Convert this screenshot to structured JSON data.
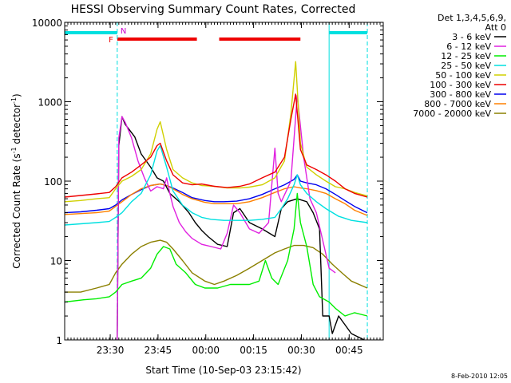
{
  "chart_data": {
    "type": "line",
    "title": "HESSI Observing Summary Count Rates, Corrected",
    "xlabel": "Start Time (10-Sep-03 23:15:42)",
    "ylabel_pre": "Corrected Count Rate (s",
    "ylabel_sup": "-1",
    "ylabel_post": " detector",
    "ylabel_end": ")",
    "y_scale": "log",
    "ylim": [
      1,
      10000
    ],
    "xlim_minutes": [
      0,
      100
    ],
    "x_ticks": [
      {
        "label": "23:30",
        "minute": 14.3
      },
      {
        "label": "23:45",
        "minute": 29.3
      },
      {
        "label": "00:00",
        "minute": 44.3
      },
      {
        "label": "00:15",
        "minute": 59.3
      },
      {
        "label": "00:30",
        "minute": 74.3
      },
      {
        "label": "00:45",
        "minute": 89.3
      }
    ],
    "y_ticks": [
      {
        "label": "1",
        "value": 1
      },
      {
        "label": "10",
        "value": 10
      },
      {
        "label": "100",
        "value": 100
      },
      {
        "label": "1000",
        "value": 1000
      },
      {
        "label": "10000",
        "value": 10000
      }
    ],
    "legend_header": [
      "Det 1,3,4,5,6,9,",
      "Att 0"
    ],
    "legend_placement": "right",
    "series": [
      {
        "name": "3 - 6 keV",
        "color": "#000000",
        "points": [
          [
            16.5,
            1
          ],
          [
            17,
            280
          ],
          [
            18,
            650
          ],
          [
            19,
            520
          ],
          [
            22,
            360
          ],
          [
            24,
            220
          ],
          [
            27,
            150
          ],
          [
            29,
            110
          ],
          [
            31,
            100
          ],
          [
            33,
            70
          ],
          [
            36,
            55
          ],
          [
            39,
            40
          ],
          [
            41,
            30
          ],
          [
            43,
            24
          ],
          [
            45,
            20
          ],
          [
            48,
            16
          ],
          [
            51,
            15
          ],
          [
            53,
            40
          ],
          [
            55,
            45
          ],
          [
            58,
            30
          ],
          [
            62,
            25
          ],
          [
            66,
            20
          ],
          [
            68,
            45
          ],
          [
            70,
            55
          ],
          [
            73,
            60
          ],
          [
            76,
            55
          ],
          [
            78,
            40
          ],
          [
            80,
            25
          ],
          [
            81,
            2
          ],
          [
            83,
            2
          ],
          [
            84,
            1.2
          ],
          [
            86,
            2
          ],
          [
            90,
            1.2
          ],
          [
            94,
            1
          ]
        ]
      },
      {
        "name": "6 - 12 keV",
        "color": "#e020e0",
        "points": [
          [
            16.5,
            1
          ],
          [
            17,
            350
          ],
          [
            18,
            650
          ],
          [
            19,
            550
          ],
          [
            21,
            350
          ],
          [
            23,
            180
          ],
          [
            25,
            110
          ],
          [
            27,
            75
          ],
          [
            29,
            85
          ],
          [
            31,
            80
          ],
          [
            32,
            110
          ],
          [
            33,
            70
          ],
          [
            34,
            48
          ],
          [
            36,
            30
          ],
          [
            38,
            23
          ],
          [
            40,
            19
          ],
          [
            43,
            16
          ],
          [
            46,
            15
          ],
          [
            49,
            14
          ],
          [
            51,
            22
          ],
          [
            53,
            50
          ],
          [
            55,
            40
          ],
          [
            58,
            25
          ],
          [
            61,
            22
          ],
          [
            64,
            30
          ],
          [
            66,
            260
          ],
          [
            67,
            70
          ],
          [
            68,
            55
          ],
          [
            71,
            100
          ],
          [
            73,
            1200
          ],
          [
            75,
            200
          ],
          [
            77,
            60
          ],
          [
            79,
            40
          ],
          [
            81,
            18
          ],
          [
            83,
            8
          ],
          [
            85,
            7
          ]
        ]
      },
      {
        "name": "12 - 25 keV",
        "color": "#00ee00",
        "points": [
          [
            0,
            3
          ],
          [
            6,
            3.2
          ],
          [
            10,
            3.3
          ],
          [
            14,
            3.5
          ],
          [
            16,
            4
          ],
          [
            18,
            5
          ],
          [
            21,
            5.5
          ],
          [
            24,
            6
          ],
          [
            27,
            8
          ],
          [
            29,
            12
          ],
          [
            31,
            15
          ],
          [
            33,
            14
          ],
          [
            35,
            9
          ],
          [
            38,
            7
          ],
          [
            41,
            5
          ],
          [
            44,
            4.5
          ],
          [
            48,
            4.5
          ],
          [
            52,
            5
          ],
          [
            55,
            5
          ],
          [
            58,
            5
          ],
          [
            61,
            5.5
          ],
          [
            63,
            10
          ],
          [
            65,
            6
          ],
          [
            67,
            5
          ],
          [
            70,
            10
          ],
          [
            72,
            25
          ],
          [
            73,
            70
          ],
          [
            74,
            30
          ],
          [
            76,
            15
          ],
          [
            78,
            5
          ],
          [
            80,
            3.5
          ],
          [
            83,
            3
          ],
          [
            85,
            2.5
          ],
          [
            88,
            2
          ],
          [
            91,
            2.2
          ],
          [
            95,
            2
          ]
        ]
      },
      {
        "name": "25 - 50 keV",
        "color": "#00e0e0",
        "points": [
          [
            0,
            28
          ],
          [
            5,
            29
          ],
          [
            10,
            30
          ],
          [
            14,
            31
          ],
          [
            16,
            35
          ],
          [
            18,
            40
          ],
          [
            21,
            55
          ],
          [
            24,
            70
          ],
          [
            27,
            120
          ],
          [
            29,
            240
          ],
          [
            30,
            280
          ],
          [
            32,
            150
          ],
          [
            34,
            75
          ],
          [
            37,
            50
          ],
          [
            40,
            40
          ],
          [
            43,
            35
          ],
          [
            46,
            33
          ],
          [
            50,
            32
          ],
          [
            54,
            32
          ],
          [
            58,
            32
          ],
          [
            62,
            33
          ],
          [
            66,
            35
          ],
          [
            68,
            45
          ],
          [
            70,
            60
          ],
          [
            72,
            90
          ],
          [
            73,
            120
          ],
          [
            74,
            90
          ],
          [
            76,
            70
          ],
          [
            79,
            55
          ],
          [
            82,
            45
          ],
          [
            86,
            36
          ],
          [
            90,
            32
          ],
          [
            95,
            30
          ]
        ]
      },
      {
        "name": "50 - 100 keV",
        "color": "#d0d000",
        "points": [
          [
            0,
            55
          ],
          [
            5,
            57
          ],
          [
            10,
            60
          ],
          [
            14,
            62
          ],
          [
            16,
            80
          ],
          [
            18,
            100
          ],
          [
            21,
            115
          ],
          [
            24,
            140
          ],
          [
            27,
            220
          ],
          [
            29,
            450
          ],
          [
            30,
            560
          ],
          [
            32,
            250
          ],
          [
            34,
            140
          ],
          [
            37,
            110
          ],
          [
            40,
            95
          ],
          [
            43,
            88
          ],
          [
            47,
            86
          ],
          [
            51,
            82
          ],
          [
            55,
            82
          ],
          [
            58,
            84
          ],
          [
            62,
            90
          ],
          [
            66,
            110
          ],
          [
            69,
            180
          ],
          [
            71,
            700
          ],
          [
            72.5,
            3200
          ],
          [
            74,
            300
          ],
          [
            76,
            150
          ],
          [
            79,
            120
          ],
          [
            82,
            100
          ],
          [
            85,
            85
          ],
          [
            88,
            80
          ],
          [
            91,
            72
          ],
          [
            95,
            65
          ]
        ]
      },
      {
        "name": "100 - 300 keV",
        "color": "#ee0000",
        "points": [
          [
            0,
            63
          ],
          [
            5,
            66
          ],
          [
            10,
            69
          ],
          [
            14,
            72
          ],
          [
            16,
            85
          ],
          [
            18,
            110
          ],
          [
            21,
            130
          ],
          [
            24,
            160
          ],
          [
            27,
            200
          ],
          [
            29,
            280
          ],
          [
            30,
            300
          ],
          [
            32,
            180
          ],
          [
            34,
            120
          ],
          [
            37,
            95
          ],
          [
            40,
            90
          ],
          [
            43,
            92
          ],
          [
            47,
            86
          ],
          [
            51,
            83
          ],
          [
            55,
            86
          ],
          [
            58,
            92
          ],
          [
            62,
            110
          ],
          [
            66,
            130
          ],
          [
            69,
            200
          ],
          [
            71,
            600
          ],
          [
            72.5,
            1250
          ],
          [
            74,
            250
          ],
          [
            76,
            160
          ],
          [
            79,
            140
          ],
          [
            82,
            120
          ],
          [
            85,
            100
          ],
          [
            88,
            80
          ],
          [
            91,
            70
          ],
          [
            95,
            63
          ]
        ]
      },
      {
        "name": "300 - 800 keV",
        "color": "#0000ee",
        "points": [
          [
            0,
            40
          ],
          [
            5,
            41
          ],
          [
            10,
            43
          ],
          [
            14,
            45
          ],
          [
            16,
            50
          ],
          [
            18,
            58
          ],
          [
            21,
            68
          ],
          [
            24,
            78
          ],
          [
            27,
            88
          ],
          [
            30,
            92
          ],
          [
            32,
            88
          ],
          [
            34,
            82
          ],
          [
            37,
            72
          ],
          [
            40,
            62
          ],
          [
            44,
            57
          ],
          [
            47,
            55
          ],
          [
            50,
            55
          ],
          [
            54,
            56
          ],
          [
            58,
            60
          ],
          [
            62,
            68
          ],
          [
            66,
            80
          ],
          [
            69,
            90
          ],
          [
            72,
            105
          ],
          [
            73,
            120
          ],
          [
            74,
            100
          ],
          [
            76,
            95
          ],
          [
            79,
            90
          ],
          [
            82,
            80
          ],
          [
            85,
            68
          ],
          [
            88,
            57
          ],
          [
            91,
            48
          ],
          [
            95,
            40
          ]
        ]
      },
      {
        "name": "800 - 7000 keV",
        "color": "#ff8000",
        "points": [
          [
            0,
            38
          ],
          [
            5,
            39
          ],
          [
            10,
            40
          ],
          [
            14,
            42
          ],
          [
            16,
            48
          ],
          [
            18,
            55
          ],
          [
            21,
            68
          ],
          [
            24,
            80
          ],
          [
            27,
            88
          ],
          [
            30,
            92
          ],
          [
            32,
            88
          ],
          [
            34,
            80
          ],
          [
            37,
            68
          ],
          [
            40,
            60
          ],
          [
            44,
            54
          ],
          [
            47,
            52
          ],
          [
            50,
            52
          ],
          [
            54,
            52
          ],
          [
            58,
            55
          ],
          [
            62,
            62
          ],
          [
            66,
            72
          ],
          [
            69,
            80
          ],
          [
            72,
            85
          ],
          [
            74,
            82
          ],
          [
            76,
            80
          ],
          [
            79,
            76
          ],
          [
            82,
            70
          ],
          [
            85,
            60
          ],
          [
            88,
            52
          ],
          [
            91,
            43
          ],
          [
            95,
            37
          ]
        ]
      },
      {
        "name": "7000 - 20000 keV",
        "color": "#8b8000",
        "points": [
          [
            0,
            4
          ],
          [
            5,
            4
          ],
          [
            10,
            4.5
          ],
          [
            14,
            5
          ],
          [
            16,
            7
          ],
          [
            18,
            9
          ],
          [
            21,
            12
          ],
          [
            24,
            15
          ],
          [
            27,
            17
          ],
          [
            30,
            18
          ],
          [
            32,
            17
          ],
          [
            34,
            14
          ],
          [
            37,
            10
          ],
          [
            40,
            7
          ],
          [
            44,
            5.5
          ],
          [
            47,
            5
          ],
          [
            50,
            5.5
          ],
          [
            54,
            6.5
          ],
          [
            58,
            8
          ],
          [
            62,
            10
          ],
          [
            66,
            12.5
          ],
          [
            69,
            14
          ],
          [
            72,
            15.5
          ],
          [
            75,
            15.5
          ],
          [
            78,
            14.5
          ],
          [
            81,
            12
          ],
          [
            84,
            9
          ],
          [
            87,
            7
          ],
          [
            90,
            5.5
          ],
          [
            95,
            4.5
          ]
        ]
      }
    ],
    "annotations": {
      "front_mark_label": "F",
      "night_mark_label": "N",
      "flare_bars_minutes": [
        [
          16.5,
          41.5
        ],
        [
          48.5,
          74
        ]
      ],
      "night_bars_minutes": [
        [
          0,
          16.5
        ],
        [
          83,
          95
        ]
      ],
      "vlines_minutes": [
        16.5,
        83,
        95
      ]
    }
  },
  "footer": {
    "timestamp": "8-Feb-2010 12:05"
  },
  "colors": {
    "flag_red": "#ee0000",
    "night_cyan": "#00e0e0",
    "axes": "#000000"
  }
}
